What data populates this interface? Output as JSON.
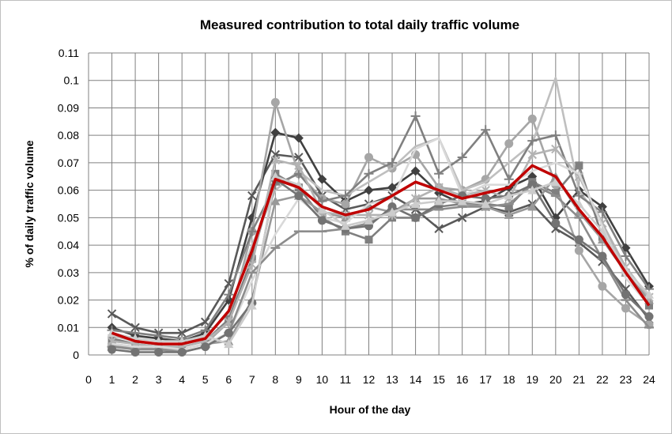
{
  "chart_data": {
    "type": "line",
    "title": "Measured contribution to total daily traffic volume",
    "xlabel": "Hour of the day",
    "ylabel": "% of daily traffic volume",
    "xlim": [
      0,
      24
    ],
    "ylim": [
      0,
      0.11
    ],
    "x_ticks": [
      "0",
      "1",
      "2",
      "3",
      "4",
      "5",
      "6",
      "7",
      "8",
      "9",
      "10",
      "11",
      "12",
      "13",
      "14",
      "15",
      "16",
      "17",
      "18",
      "19",
      "20",
      "21",
      "22",
      "23",
      "24"
    ],
    "y_ticks": [
      "0",
      "0.01",
      "0.02",
      "0.03",
      "0.04",
      "0.05",
      "0.06",
      "0.07",
      "0.08",
      "0.09",
      "0.1",
      "0.11"
    ],
    "grid": true,
    "legend": "none",
    "x": [
      1,
      2,
      3,
      4,
      5,
      6,
      7,
      8,
      9,
      10,
      11,
      12,
      13,
      14,
      15,
      16,
      17,
      18,
      19,
      20,
      21,
      22,
      23,
      24
    ],
    "series": [
      {
        "color": "#595959",
        "marker": "x",
        "values": [
          0.015,
          0.01,
          0.008,
          0.008,
          0.012,
          0.026,
          0.058,
          0.073,
          0.072,
          0.058,
          0.053,
          0.055,
          0.058,
          0.053,
          0.046,
          0.05,
          0.054,
          0.052,
          0.055,
          0.046,
          0.041,
          0.034,
          0.024,
          0.013
        ]
      },
      {
        "color": "#404040",
        "marker": "diamond",
        "values": [
          0.01,
          0.007,
          0.006,
          0.005,
          0.008,
          0.02,
          0.05,
          0.081,
          0.079,
          0.064,
          0.056,
          0.06,
          0.061,
          0.067,
          0.059,
          0.055,
          0.056,
          0.061,
          0.065,
          0.05,
          0.06,
          0.054,
          0.039,
          0.025
        ]
      },
      {
        "color": "#a6a6a6",
        "marker": "circle",
        "values": [
          0.004,
          0.003,
          0.002,
          0.002,
          0.004,
          0.012,
          0.045,
          0.092,
          0.066,
          0.057,
          0.055,
          0.072,
          0.068,
          0.073,
          0.061,
          0.06,
          0.064,
          0.077,
          0.086,
          0.062,
          0.038,
          0.025,
          0.017,
          0.011
        ]
      },
      {
        "color": "#bfbfbf",
        "marker": "none",
        "values": [
          0.007,
          0.005,
          0.004,
          0.004,
          0.007,
          0.015,
          0.04,
          0.06,
          0.067,
          0.06,
          0.058,
          0.063,
          0.068,
          0.076,
          0.079,
          0.06,
          0.063,
          0.07,
          0.077,
          0.101,
          0.06,
          0.048,
          0.03,
          0.02
        ]
      },
      {
        "color": "#808080",
        "marker": "plus",
        "values": [
          0.009,
          0.008,
          0.007,
          0.006,
          0.009,
          0.022,
          0.045,
          0.062,
          0.066,
          0.056,
          0.058,
          0.066,
          0.07,
          0.087,
          0.066,
          0.072,
          0.082,
          0.064,
          0.078,
          0.08,
          0.058,
          0.052,
          0.036,
          0.024
        ]
      },
      {
        "color": "#7f7f7f",
        "marker": "square",
        "values": [
          0.006,
          0.004,
          0.003,
          0.003,
          0.005,
          0.013,
          0.035,
          0.066,
          0.061,
          0.05,
          0.045,
          0.042,
          0.05,
          0.05,
          0.054,
          0.055,
          0.055,
          0.054,
          0.063,
          0.059,
          0.069,
          0.043,
          0.03,
          0.018
        ]
      },
      {
        "color": "#999999",
        "marker": "triangle",
        "values": [
          0.003,
          0.003,
          0.002,
          0.002,
          0.004,
          0.005,
          0.02,
          0.056,
          0.058,
          0.052,
          0.05,
          0.054,
          0.052,
          0.057,
          0.057,
          0.055,
          0.054,
          0.051,
          0.054,
          0.065,
          0.052,
          0.042,
          0.03,
          0.02
        ]
      },
      {
        "color": "#b3b3b3",
        "marker": "star",
        "values": [
          0.005,
          0.004,
          0.003,
          0.003,
          0.005,
          0.012,
          0.033,
          0.071,
          0.069,
          0.052,
          0.051,
          0.051,
          0.051,
          0.057,
          0.061,
          0.058,
          0.06,
          0.057,
          0.073,
          0.075,
          0.065,
          0.048,
          0.032,
          0.021
        ]
      },
      {
        "color": "#d9d9d9",
        "marker": "none",
        "values": [
          0.004,
          0.003,
          0.003,
          0.002,
          0.004,
          0.008,
          0.027,
          0.044,
          0.057,
          0.05,
          0.048,
          0.055,
          0.057,
          0.075,
          0.079,
          0.058,
          0.062,
          0.062,
          0.067,
          0.07,
          0.066,
          0.047,
          0.028,
          0.018
        ]
      },
      {
        "color": "#8c8c8c",
        "marker": "dash",
        "values": [
          0.003,
          0.002,
          0.002,
          0.001,
          0.003,
          0.008,
          0.03,
          0.039,
          0.045,
          0.045,
          0.046,
          0.048,
          0.053,
          0.053,
          0.053,
          0.054,
          0.054,
          0.055,
          0.062,
          0.058,
          0.05,
          0.035,
          0.02,
          0.01
        ]
      },
      {
        "color": "#737373",
        "marker": "circle",
        "values": [
          0.002,
          0.001,
          0.001,
          0.001,
          0.003,
          0.008,
          0.019,
          0.064,
          0.058,
          0.049,
          0.046,
          0.047,
          0.054,
          0.05,
          0.055,
          0.058,
          0.057,
          0.058,
          0.062,
          0.048,
          0.042,
          0.036,
          0.022,
          0.014
        ]
      },
      {
        "color": "#cccccc",
        "marker": "triangle",
        "values": [
          0.008,
          0.006,
          0.005,
          0.005,
          0.007,
          0.004,
          0.018,
          0.065,
          0.062,
          0.053,
          0.047,
          0.049,
          0.052,
          0.055,
          0.056,
          0.056,
          0.055,
          0.058,
          0.06,
          0.063,
          0.055,
          0.045,
          0.031,
          0.022
        ]
      },
      {
        "color": "#c00000",
        "marker": "none",
        "values": [
          0.008,
          0.005,
          0.004,
          0.004,
          0.006,
          0.016,
          0.038,
          0.064,
          0.061,
          0.054,
          0.051,
          0.053,
          0.058,
          0.063,
          0.06,
          0.057,
          0.059,
          0.061,
          0.069,
          0.065,
          0.053,
          0.043,
          0.03,
          0.018
        ]
      }
    ]
  }
}
